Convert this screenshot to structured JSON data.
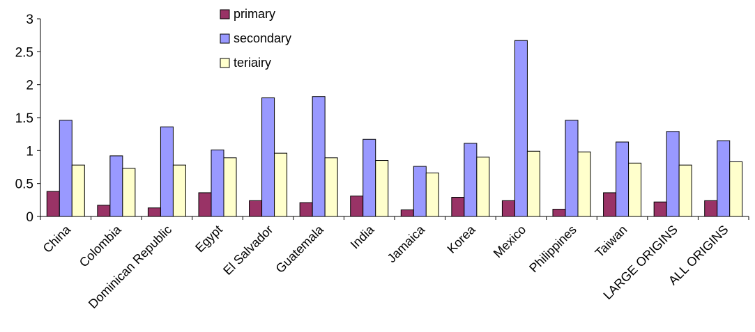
{
  "chart_data": {
    "type": "bar",
    "title": "",
    "xlabel": "",
    "ylabel": "",
    "ylim": [
      0,
      3
    ],
    "yticks": [
      0,
      0.5,
      1,
      1.5,
      2,
      2.5,
      3
    ],
    "ytick_labels": [
      "0",
      "0.5",
      "1",
      "1.5",
      "2",
      "2.5",
      "3"
    ],
    "grid": false,
    "legend_position": "top-center",
    "categories": [
      "China",
      "Colombia",
      "Dominican Republic",
      "Egypt",
      "El Salvador",
      "Guatemala",
      "India",
      "Jamaica",
      "Korea",
      "Mexico",
      "Philippines",
      "Taiwan",
      "LARGE ORIGINS",
      "ALL ORIGINS"
    ],
    "series": [
      {
        "name": "primary",
        "color": "#993366",
        "values": [
          0.38,
          0.17,
          0.13,
          0.36,
          0.24,
          0.21,
          0.31,
          0.1,
          0.29,
          0.24,
          0.11,
          0.36,
          0.22,
          0.24
        ]
      },
      {
        "name": "secondary",
        "color": "#9999FF",
        "values": [
          1.46,
          0.92,
          1.36,
          1.01,
          1.8,
          1.82,
          1.17,
          0.76,
          1.11,
          2.67,
          1.46,
          1.13,
          1.29,
          1.15
        ]
      },
      {
        "name": "teriairy",
        "color": "#FFFFCC",
        "values": [
          0.78,
          0.73,
          0.78,
          0.89,
          0.96,
          0.89,
          0.85,
          0.66,
          0.9,
          0.99,
          0.98,
          0.81,
          0.78,
          0.83
        ]
      }
    ]
  }
}
